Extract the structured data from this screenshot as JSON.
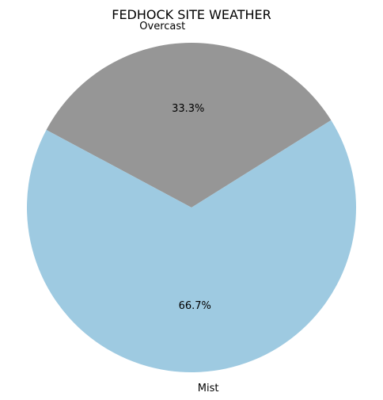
{
  "chart_data": {
    "type": "pie",
    "title": "FEDHOCK SITE WEATHER",
    "slices": [
      {
        "label": "Overcast",
        "value": 33.3,
        "pct_label": "33.3%",
        "color": "#969696"
      },
      {
        "label": "Mist",
        "value": 66.7,
        "pct_label": "66.7%",
        "color": "#9ecae1"
      }
    ]
  }
}
